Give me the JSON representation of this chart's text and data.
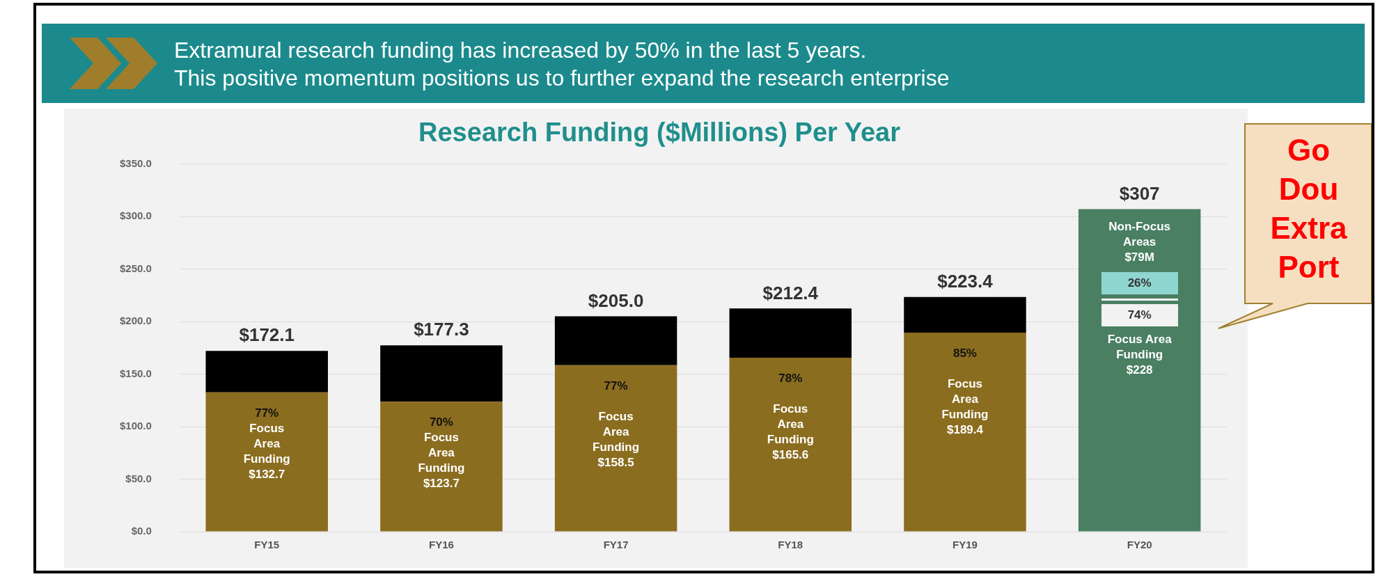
{
  "chart_data": {
    "type": "bar",
    "title": "Research Funding ($Millions) Per Year",
    "subtitle": "Extramural research funding has increased by 50% in the last 5 years.\nThis positive momentum positions us to further expand the research enterprise",
    "annotations": [
      "Go\nDou\nExtra\nPort",
      "Non-Focus\nAreas\n$79M",
      "26%",
      "74%",
      "Focus Area\nFunding\n$228"
    ],
    "categories": [
      "FY15",
      "FY16",
      "FY17",
      "FY18",
      "FY19",
      "FY20"
    ],
    "stacked": true,
    "grid": "y",
    "ylim": [
      0,
      350
    ],
    "yticks": [
      {
        "value": 0,
        "label": "$0.0"
      },
      {
        "value": 50,
        "label": "$50.0"
      },
      {
        "value": 100,
        "label": "$100.0"
      },
      {
        "value": 150,
        "label": "$150.0"
      },
      {
        "value": 200,
        "label": "$200.0"
      },
      {
        "value": 250,
        "label": "$250.0"
      },
      {
        "value": 300,
        "label": "$300.0"
      },
      {
        "value": 350,
        "label": "$350.0"
      }
    ],
    "series": [
      {
        "color": "#8b6d1f",
        "values": [
          132.7,
          123.7,
          158.5,
          165.6,
          189.4,
          null
        ],
        "value_labels": [
          "77%\nFocus\nArea\nFunding\n$132.7",
          "70%\nFocus\nArea\nFunding\n$123.7",
          "77%\n\nFocus\nArea\nFunding\n$158.5",
          "78%\n\nFocus\nArea\nFunding\n$165.6",
          "85%\n\nFocus\nArea\nFunding\n$189.4",
          null
        ]
      },
      {
        "color": "#000000",
        "values": [
          39.4,
          53.6,
          46.5,
          46.8,
          34.0,
          null
        ],
        "value_labels": [
          null,
          null,
          null,
          null,
          null,
          null
        ]
      },
      {
        "color": "#4a7f62",
        "values": [
          null,
          null,
          null,
          null,
          null,
          307
        ]
      }
    ],
    "totals": [
      "$172.1",
      "$177.3",
      "$205.0",
      "$212.4",
      "$223.4",
      "$307"
    ]
  }
}
